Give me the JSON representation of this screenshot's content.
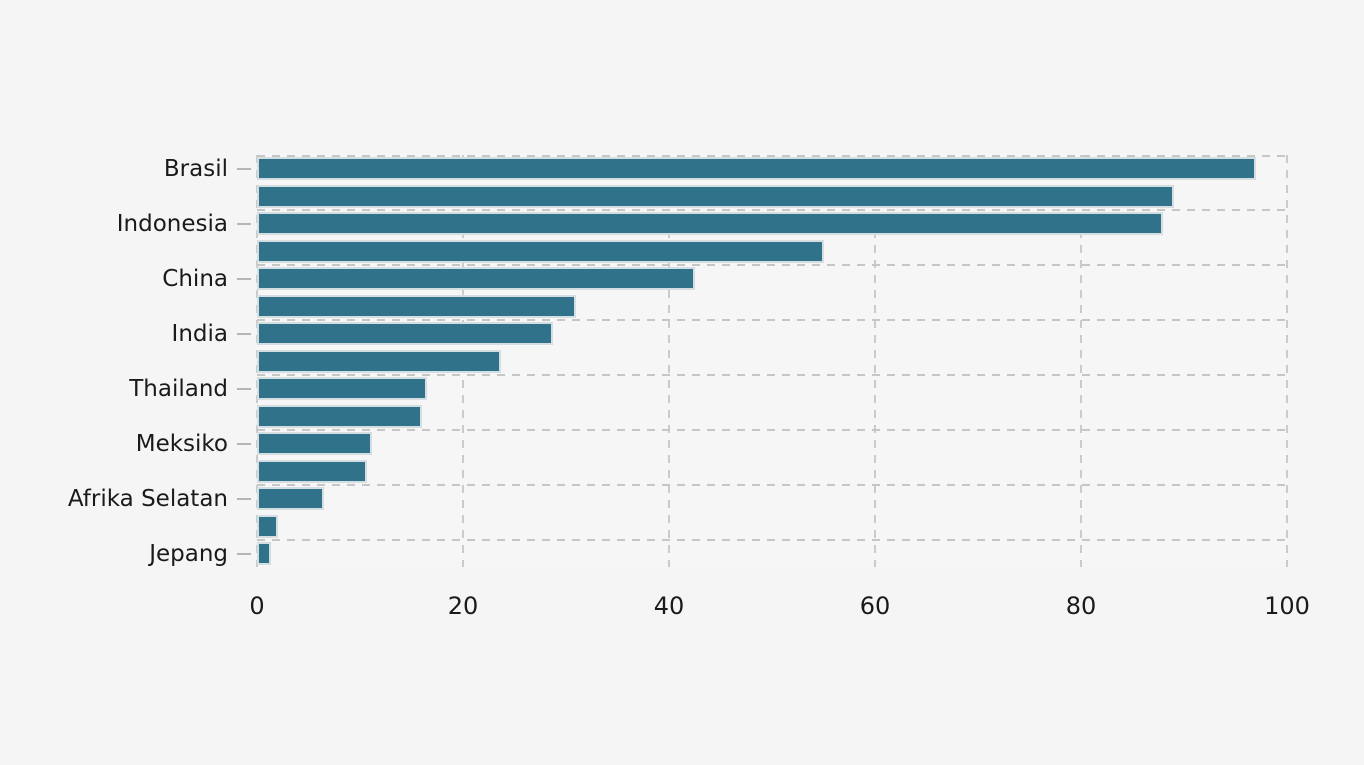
{
  "chart_data": {
    "type": "bar",
    "orientation": "horizontal",
    "title": "",
    "xlabel": "",
    "ylabel": "",
    "categories": [
      "Brasil",
      "Indonesia",
      "China",
      "India",
      "Thailand",
      "Meksiko",
      "Afrika Selatan",
      "Jepang"
    ],
    "series": [
      {
        "name": "bar-primary",
        "values": [
          97,
          88,
          42.5,
          28.7,
          16.5,
          11.2,
          6.5,
          1.4
        ]
      },
      {
        "name": "bar-secondary",
        "values": [
          89,
          55,
          31,
          23.7,
          16,
          10.7,
          2,
          null
        ]
      }
    ],
    "xlim": [
      0,
      100
    ],
    "x_ticks": [
      "0",
      "20",
      "40",
      "60",
      "80",
      "100"
    ],
    "x_tick_values": [
      0,
      20,
      40,
      60,
      80,
      100
    ],
    "grid": "dashed",
    "legend_position": "none"
  },
  "style": {
    "bar_color": "#2f7289",
    "bar_edge_color": "#d4dde1",
    "grid_color": "#cbcbcb",
    "separator_color": "#c6c6c6",
    "tick_color": "#b5b5b5",
    "text_color": "#1a1a1a",
    "background": "#f5f5f5"
  }
}
